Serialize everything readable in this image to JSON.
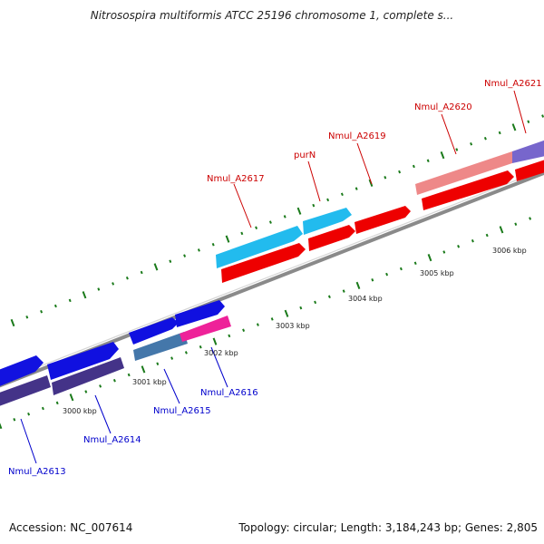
{
  "header": {
    "title": "Nitrosospira multiformis ATCC 25196 chromosome 1, complete s..."
  },
  "footer": {
    "accession": "Accession: NC_007614",
    "summary": "Topology: circular; Length: 3,184,243 bp; Genes: 2,805"
  },
  "scale": [
    {
      "label": "3000 kbp"
    },
    {
      "label": "3001 kbp"
    },
    {
      "label": "3002 kbp"
    },
    {
      "label": "3003 kbp"
    },
    {
      "label": "3004 kbp"
    },
    {
      "label": "3005 kbp"
    },
    {
      "label": "3006 kbp"
    }
  ],
  "colors": {
    "tick": "#1a7a1a",
    "backbone": "#8a8a8a",
    "top_label": "#cc0000",
    "bottom_label": "#0000cc"
  },
  "gene_labels_top": [
    {
      "text": "Nmul_A2617"
    },
    {
      "text": "purN"
    },
    {
      "text": "Nmul_A2619"
    },
    {
      "text": "Nmul_A2620"
    },
    {
      "text": "Nmul_A2621"
    }
  ],
  "gene_labels_bottom": [
    {
      "text": "Nmul_A2613"
    },
    {
      "text": "Nmul_A2614"
    },
    {
      "text": "Nmul_A2615"
    },
    {
      "text": "Nmul_A2616"
    }
  ]
}
